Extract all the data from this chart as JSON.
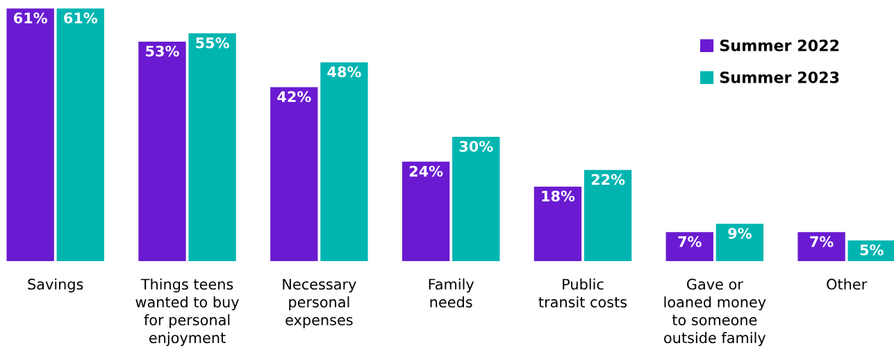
{
  "chart_data": {
    "type": "bar",
    "categories": [
      "Savings",
      "Things teens\nwanted to buy\nfor personal\nenjoyment",
      "Necessary\npersonal\nexpenses",
      "Family\nneeds",
      "Public\ntransit costs",
      "Gave or\nloaned money\nto someone\noutside family",
      "Other"
    ],
    "series": [
      {
        "name": "Summer 2022",
        "color": "#6a1bd1",
        "values": [
          61,
          53,
          42,
          24,
          18,
          7,
          7
        ],
        "value_labels": [
          "61%",
          "53%",
          "42%",
          "24%",
          "18%",
          "7%",
          "7%"
        ]
      },
      {
        "name": "Summer 2023",
        "color": "#00b5b0",
        "values": [
          61,
          55,
          48,
          30,
          22,
          9,
          5
        ],
        "value_labels": [
          "61%",
          "55%",
          "48%",
          "30%",
          "22%",
          "9%",
          "5%"
        ]
      }
    ],
    "legend": "top right",
    "grid": false
  }
}
